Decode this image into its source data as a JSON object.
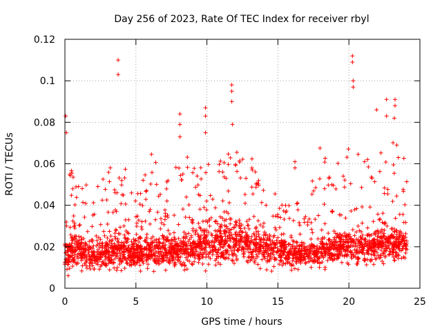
{
  "chart_data": {
    "type": "scatter",
    "title": "Day 256 of 2023, Rate Of TEC Index for receiver rbyl",
    "xlabel": "GPS time / hours",
    "ylabel": "ROTI / TECUs",
    "xlim": [
      0,
      25
    ],
    "ylim": [
      0,
      0.12
    ],
    "xticks": [
      0,
      5,
      10,
      15,
      20,
      25
    ],
    "yticks": [
      0,
      0.02,
      0.04,
      0.06,
      0.08,
      0.1,
      0.12
    ],
    "xtick_labels": [
      "0",
      "5",
      "10",
      "15",
      "20",
      "25"
    ],
    "ytick_labels": [
      "0",
      "0.02",
      "0.04",
      "0.06",
      "0.08",
      "0.1",
      "0.12"
    ],
    "grid": true,
    "marker": "+",
    "color": "#ff0000",
    "series": [
      {
        "name": "ROTI",
        "points_description": "dense scatter of ROTI samples over 0-24 h",
        "notable_points": [
          {
            "x": 0.05,
            "y": 0.083
          },
          {
            "x": 0.1,
            "y": 0.075
          },
          {
            "x": 3.75,
            "y": 0.11
          },
          {
            "x": 3.75,
            "y": 0.103
          },
          {
            "x": 8.1,
            "y": 0.084
          },
          {
            "x": 8.1,
            "y": 0.079
          },
          {
            "x": 8.1,
            "y": 0.073
          },
          {
            "x": 9.9,
            "y": 0.087
          },
          {
            "x": 9.9,
            "y": 0.083
          },
          {
            "x": 9.9,
            "y": 0.075
          },
          {
            "x": 11.75,
            "y": 0.098
          },
          {
            "x": 11.75,
            "y": 0.095
          },
          {
            "x": 11.75,
            "y": 0.09
          },
          {
            "x": 11.8,
            "y": 0.079
          },
          {
            "x": 16.2,
            "y": 0.061
          },
          {
            "x": 16.2,
            "y": 0.058
          },
          {
            "x": 20.25,
            "y": 0.112
          },
          {
            "x": 20.25,
            "y": 0.109
          },
          {
            "x": 20.3,
            "y": 0.1
          },
          {
            "x": 20.3,
            "y": 0.097
          },
          {
            "x": 21.95,
            "y": 0.086
          },
          {
            "x": 22.65,
            "y": 0.091
          },
          {
            "x": 22.65,
            "y": 0.083
          },
          {
            "x": 23.25,
            "y": 0.091
          },
          {
            "x": 23.25,
            "y": 0.088
          },
          {
            "x": 23.2,
            "y": 0.082
          }
        ],
        "envelope_hours": [
          0,
          1,
          2,
          3,
          4,
          5,
          6,
          7,
          8,
          9,
          10,
          11,
          12,
          13,
          14,
          15,
          16,
          17,
          18,
          19,
          20,
          21,
          22,
          23,
          24
        ],
        "envelope_upper": [
          0.058,
          0.056,
          0.046,
          0.057,
          0.065,
          0.045,
          0.066,
          0.058,
          0.06,
          0.067,
          0.07,
          0.068,
          0.072,
          0.066,
          0.05,
          0.046,
          0.045,
          0.04,
          0.07,
          0.06,
          0.07,
          0.063,
          0.065,
          0.075,
          0.062
        ],
        "envelope_median": [
          0.016,
          0.018,
          0.015,
          0.017,
          0.019,
          0.016,
          0.018,
          0.017,
          0.018,
          0.02,
          0.021,
          0.022,
          0.023,
          0.021,
          0.019,
          0.018,
          0.017,
          0.016,
          0.018,
          0.019,
          0.02,
          0.019,
          0.02,
          0.022,
          0.021
        ],
        "envelope_lower": [
          0.005,
          0.006,
          0.005,
          0.006,
          0.006,
          0.006,
          0.007,
          0.006,
          0.007,
          0.007,
          0.007,
          0.008,
          0.008,
          0.007,
          0.006,
          0.006,
          0.007,
          0.007,
          0.008,
          0.008,
          0.008,
          0.009,
          0.009,
          0.009,
          0.01
        ]
      }
    ]
  }
}
